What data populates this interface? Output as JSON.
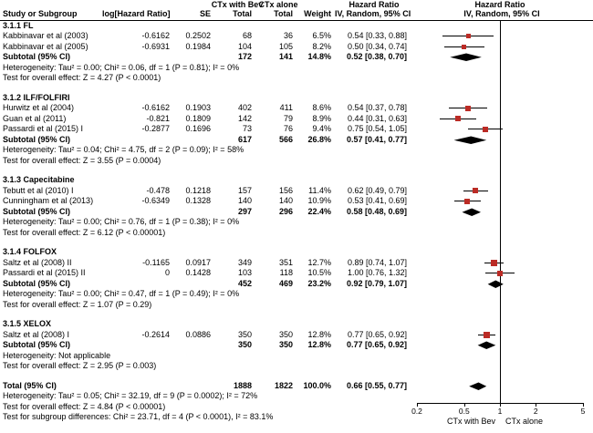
{
  "header": {
    "study": "Study or Subgroup",
    "log_hr": "log[Hazard Ratio]",
    "se": "SE",
    "group_bev": "CTx with Bev",
    "group_alone": "CTx alone",
    "total": "Total",
    "weight": "Weight",
    "hazard_ratio": "Hazard Ratio",
    "ci_method": "IV, Random, 95% CI"
  },
  "colors": {
    "marker": "#bb2b25",
    "diamond": "#000000",
    "axis": "#000000"
  },
  "chart_data": {
    "type": "scatter",
    "variant": "forest-plot",
    "x_scale": "log",
    "x_ticks": [
      0.2,
      0.5,
      1,
      2,
      5
    ],
    "x_range": [
      0.2,
      5
    ],
    "x_axis_left_label": "CTx with Bev",
    "x_axis_right_label": "CTx alone",
    "sections": [
      {
        "label": "3.1.1 FL",
        "studies": [
          {
            "study": "Kabbinavar et al (2003)",
            "log_hr": "-0.6162",
            "se": "0.2502",
            "bev_total": "68",
            "alone_total": "36",
            "weight": "6.5%",
            "weight_value": 6.5,
            "ci_text": "0.54 [0.33, 0.88]",
            "hr": 0.54,
            "ci_low": 0.33,
            "ci_high": 0.88
          },
          {
            "study": "Kabbinavar et al (2005)",
            "log_hr": "-0.6931",
            "se": "0.1984",
            "bev_total": "104",
            "alone_total": "105",
            "weight": "8.2%",
            "weight_value": 8.2,
            "ci_text": "0.50 [0.34, 0.74]",
            "hr": 0.5,
            "ci_low": 0.34,
            "ci_high": 0.74
          }
        ],
        "subtotal": {
          "study": "Subtotal (95% CI)",
          "bev_total": "172",
          "alone_total": "141",
          "weight": "14.8%",
          "ci_text": "0.52 [0.38, 0.70]",
          "hr": 0.52,
          "ci_low": 0.38,
          "ci_high": 0.7
        },
        "footnotes": [
          "Heterogeneity: Tau² = 0.00; Chi² = 0.06, df = 1 (P = 0.81); I² = 0%",
          "Test for overall effect: Z = 4.27 (P < 0.0001)"
        ]
      },
      {
        "label": "3.1.2 ILF/FOLFIRI",
        "studies": [
          {
            "study": "Hurwitz et al (2004)",
            "log_hr": "-0.6162",
            "se": "0.1903",
            "bev_total": "402",
            "alone_total": "411",
            "weight": "8.6%",
            "weight_value": 8.6,
            "ci_text": "0.54 [0.37, 0.78]",
            "hr": 0.54,
            "ci_low": 0.37,
            "ci_high": 0.78
          },
          {
            "study": "Guan et al (2011)",
            "log_hr": "-0.821",
            "se": "0.1809",
            "bev_total": "142",
            "alone_total": "79",
            "weight": "8.9%",
            "weight_value": 8.9,
            "ci_text": "0.44 [0.31, 0.63]",
            "hr": 0.44,
            "ci_low": 0.31,
            "ci_high": 0.63
          },
          {
            "study": "Passardi et al (2015) I",
            "log_hr": "-0.2877",
            "se": "0.1696",
            "bev_total": "73",
            "alone_total": "76",
            "weight": "9.4%",
            "weight_value": 9.4,
            "ci_text": "0.75 [0.54, 1.05]",
            "hr": 0.75,
            "ci_low": 0.54,
            "ci_high": 1.05
          }
        ],
        "subtotal": {
          "study": "Subtotal (95% CI)",
          "bev_total": "617",
          "alone_total": "566",
          "weight": "26.8%",
          "ci_text": "0.57 [0.41, 0.77]",
          "hr": 0.57,
          "ci_low": 0.41,
          "ci_high": 0.77
        },
        "footnotes": [
          "Heterogeneity: Tau² = 0.04; Chi² = 4.75, df = 2 (P = 0.09); I² = 58%",
          "Test for overall effect: Z = 3.55 (P = 0.0004)"
        ]
      },
      {
        "label": "3.1.3 Capecitabine",
        "studies": [
          {
            "study": "Tebutt et al (2010) I",
            "log_hr": "-0.478",
            "se": "0.1218",
            "bev_total": "157",
            "alone_total": "156",
            "weight": "11.4%",
            "weight_value": 11.4,
            "ci_text": "0.62 [0.49, 0.79]",
            "hr": 0.62,
            "ci_low": 0.49,
            "ci_high": 0.79
          },
          {
            "study": "Cunningham et al (2013)",
            "log_hr": "-0.6349",
            "se": "0.1328",
            "bev_total": "140",
            "alone_total": "140",
            "weight": "10.9%",
            "weight_value": 10.9,
            "ci_text": "0.53 [0.41, 0.69]",
            "hr": 0.53,
            "ci_low": 0.41,
            "ci_high": 0.69
          }
        ],
        "subtotal": {
          "study": "Subtotal (95% CI)",
          "bev_total": "297",
          "alone_total": "296",
          "weight": "22.4%",
          "ci_text": "0.58 [0.48, 0.69]",
          "hr": 0.58,
          "ci_low": 0.48,
          "ci_high": 0.69
        },
        "footnotes": [
          "Heterogeneity: Tau² = 0.00; Chi² = 0.76, df = 1 (P = 0.38); I² = 0%",
          "Test for overall effect: Z = 6.12 (P < 0.00001)"
        ]
      },
      {
        "label": "3.1.4 FOLFOX",
        "studies": [
          {
            "study": "Saltz et al (2008) II",
            "log_hr": "-0.1165",
            "se": "0.0917",
            "bev_total": "349",
            "alone_total": "351",
            "weight": "12.7%",
            "weight_value": 12.7,
            "ci_text": "0.89 [0.74, 1.07]",
            "hr": 0.89,
            "ci_low": 0.74,
            "ci_high": 1.07
          },
          {
            "study": "Passardi et al (2015) II",
            "log_hr": "0",
            "se": "0.1428",
            "bev_total": "103",
            "alone_total": "118",
            "weight": "10.5%",
            "weight_value": 10.5,
            "ci_text": "1.00 [0.76, 1.32]",
            "hr": 1.0,
            "ci_low": 0.76,
            "ci_high": 1.32
          }
        ],
        "subtotal": {
          "study": "Subtotal (95% CI)",
          "bev_total": "452",
          "alone_total": "469",
          "weight": "23.2%",
          "ci_text": "0.92 [0.79, 1.07]",
          "hr": 0.92,
          "ci_low": 0.79,
          "ci_high": 1.07
        },
        "footnotes": [
          "Heterogeneity: Tau² = 0.00; Chi² = 0.47, df = 1 (P = 0.49); I² = 0%",
          "Test for overall effect: Z = 1.07 (P = 0.29)"
        ]
      },
      {
        "label": "3.1.5 XELOX",
        "studies": [
          {
            "study": "Saltz et al (2008) I",
            "log_hr": "-0.2614",
            "se": "0.0886",
            "bev_total": "350",
            "alone_total": "350",
            "weight": "12.8%",
            "weight_value": 12.8,
            "ci_text": "0.77 [0.65, 0.92]",
            "hr": 0.77,
            "ci_low": 0.65,
            "ci_high": 0.92
          }
        ],
        "subtotal": {
          "study": "Subtotal (95% CI)",
          "bev_total": "350",
          "alone_total": "350",
          "weight": "12.8%",
          "ci_text": "0.77 [0.65, 0.92]",
          "hr": 0.77,
          "ci_low": 0.65,
          "ci_high": 0.92
        },
        "footnotes": [
          "Heterogeneity: Not applicable",
          "Test for overall effect: Z = 2.95 (P = 0.003)"
        ]
      }
    ],
    "total": {
      "study": "Total (95% CI)",
      "bev_total": "1888",
      "alone_total": "1822",
      "weight": "100.0%",
      "ci_text": "0.66 [0.55, 0.77]",
      "hr": 0.66,
      "ci_low": 0.55,
      "ci_high": 0.77
    },
    "total_footnotes": [
      "Heterogeneity: Tau² = 0.05; Chi² = 32.19, df = 9 (P = 0.0002); I² = 72%",
      "Test for overall effect: Z = 4.84 (P < 0.00001)",
      "Test for subgroup differences: Chi² = 23.71, df = 4 (P < 0.0001), I² = 83.1%"
    ]
  }
}
